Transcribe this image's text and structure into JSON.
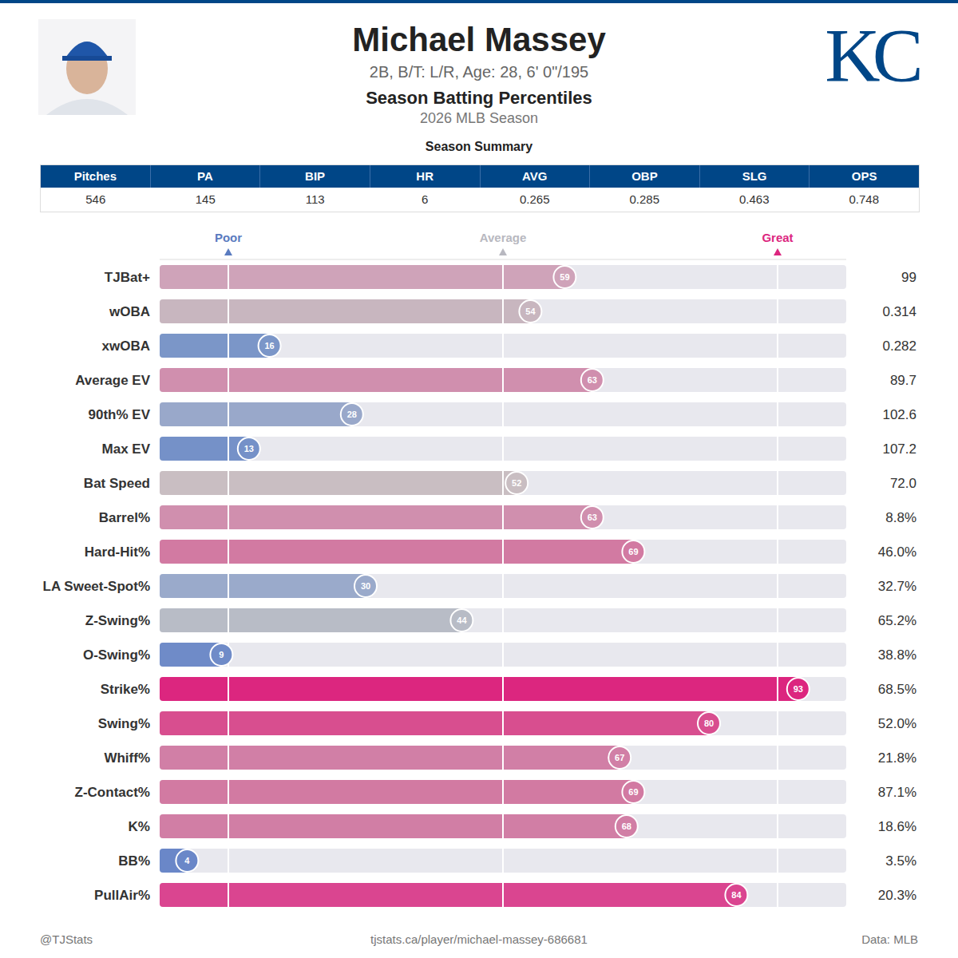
{
  "header": {
    "name": "Michael Massey",
    "subtitle": "2B, B/T: L/R, Age: 28, 6' 0\"/195",
    "title": "Season Batting Percentiles",
    "season": "2026 MLB Season",
    "logo": "KC"
  },
  "summary": {
    "title": "Season Summary",
    "columns": [
      "Pitches",
      "PA",
      "BIP",
      "HR",
      "AVG",
      "OBP",
      "SLG",
      "OPS"
    ],
    "row": [
      "546",
      "145",
      "113",
      "6",
      "0.265",
      "0.285",
      "0.463",
      "0.748"
    ]
  },
  "chart_data": {
    "type": "bar",
    "orientation": "horizontal",
    "categories": [
      "TJBat+",
      "wOBA",
      "xwOBA",
      "Average EV",
      "90th% EV",
      "Max EV",
      "Bat Speed",
      "Barrel%",
      "Hard-Hit%",
      "LA Sweet-Spot%",
      "Z-Swing%",
      "O-Swing%",
      "Strike%",
      "Swing%",
      "Whiff%",
      "Z-Contact%",
      "K%",
      "BB%",
      "PullAir%"
    ],
    "values": [
      59,
      54,
      16,
      63,
      28,
      13,
      52,
      63,
      69,
      30,
      44,
      9,
      93,
      80,
      67,
      69,
      68,
      4,
      84
    ],
    "colors": [
      "#cfa3b9",
      "#c8b6bf",
      "#7b96c8",
      "#d08fae",
      "#99a8ca",
      "#7591c8",
      "#c9bec2",
      "#d08fae",
      "#d27aa2",
      "#9aaacb",
      "#b8bcc6",
      "#6f8bc8",
      "#dc267f",
      "#d84e8f",
      "#d17fa6",
      "#d27aa2",
      "#d17ea5",
      "#6a87c8",
      "#da4590"
    ],
    "stat_values": [
      "99",
      "0.314",
      "0.282",
      "89.7",
      "102.6",
      "107.2",
      "72.0",
      "8.8%",
      "46.0%",
      "32.7%",
      "65.2%",
      "38.8%",
      "68.5%",
      "52.0%",
      "21.8%",
      "87.1%",
      "18.6%",
      "3.5%",
      "20.3%"
    ],
    "xlim": [
      0,
      100
    ],
    "xticks": [
      {
        "value": 10,
        "label": "Poor"
      },
      {
        "value": 50,
        "label": "Average"
      },
      {
        "value": 90,
        "label": "Great"
      }
    ],
    "grid": true,
    "data_labels": true
  },
  "footer": {
    "left": "@TJStats",
    "center": "tjstats.ca/player/michael-massey-686681",
    "right": "Data: MLB"
  }
}
